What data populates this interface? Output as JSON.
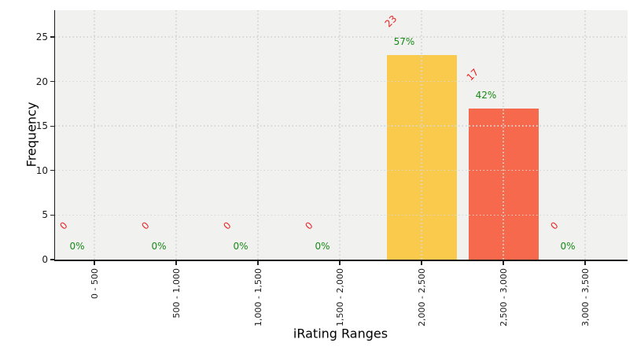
{
  "chart_data": {
    "type": "bar",
    "title": "",
    "xlabel": "iRating Ranges",
    "ylabel": "Frequency",
    "categories": [
      "0 - 500",
      "500 - 1,000",
      "1,000 - 1,500",
      "1,500 - 2,000",
      "2,000 - 2,500",
      "2,500 - 3,000",
      "3,000 - 3,500"
    ],
    "values": [
      0,
      0,
      0,
      0,
      23,
      17,
      0
    ],
    "count_labels": [
      "0",
      "0",
      "0",
      "0",
      "23",
      "17",
      "0"
    ],
    "percent_labels": [
      "0%",
      "0%",
      "0%",
      "0%",
      "57%",
      "42%",
      "0%"
    ],
    "bar_colors": [
      null,
      null,
      null,
      null,
      "#f9ca4b",
      "#f7694c",
      null
    ],
    "y_ticks": [
      0,
      5,
      10,
      15,
      20,
      25
    ],
    "ylim": [
      0,
      28
    ],
    "grid": true,
    "legend": null,
    "colors": {
      "count_label": "#e82525",
      "percent_label": "#178a17",
      "plot_background": "#f1f1ef",
      "grid": "#d6d6d3",
      "axis": "#1a1a1a"
    }
  }
}
